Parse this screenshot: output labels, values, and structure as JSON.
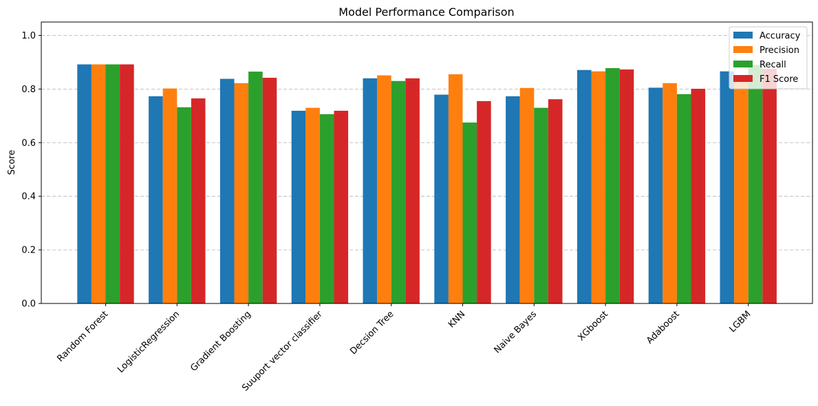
{
  "chart_data": {
    "type": "bar",
    "title": "Model Performance Comparison",
    "xlabel": "",
    "ylabel": "Score",
    "ylim": [
      0,
      1.05
    ],
    "yticks": [
      0.0,
      0.2,
      0.4,
      0.6,
      0.8,
      1.0
    ],
    "ytick_labels": [
      "0.0",
      "0.2",
      "0.4",
      "0.6",
      "0.8",
      "1.0"
    ],
    "grid": "y-dashed",
    "legend_position": "top-right",
    "categories": [
      "Random Forest",
      "LogisticRegression",
      "Gradient Boosting",
      "Suuport vector classifier",
      "Decsion Tree",
      "KNN",
      "Naive Bayes",
      "XGboost",
      "Adaboost",
      "LGBM"
    ],
    "series": [
      {
        "name": "Accuracy",
        "color": "#1f77b4",
        "values": [
          0.892,
          0.773,
          0.838,
          0.719,
          0.84,
          0.779,
          0.773,
          0.871,
          0.805,
          0.866
        ]
      },
      {
        "name": "Precision",
        "color": "#ff7f0e",
        "values": [
          0.892,
          0.802,
          0.822,
          0.73,
          0.851,
          0.855,
          0.804,
          0.866,
          0.822,
          0.845
        ]
      },
      {
        "name": "Recall",
        "color": "#2ca02c",
        "values": [
          0.892,
          0.732,
          0.865,
          0.706,
          0.83,
          0.675,
          0.73,
          0.878,
          0.781,
          0.89
        ]
      },
      {
        "name": "F1 Score",
        "color": "#d62728",
        "values": [
          0.892,
          0.765,
          0.842,
          0.719,
          0.84,
          0.755,
          0.762,
          0.873,
          0.801,
          0.875
        ]
      }
    ]
  }
}
